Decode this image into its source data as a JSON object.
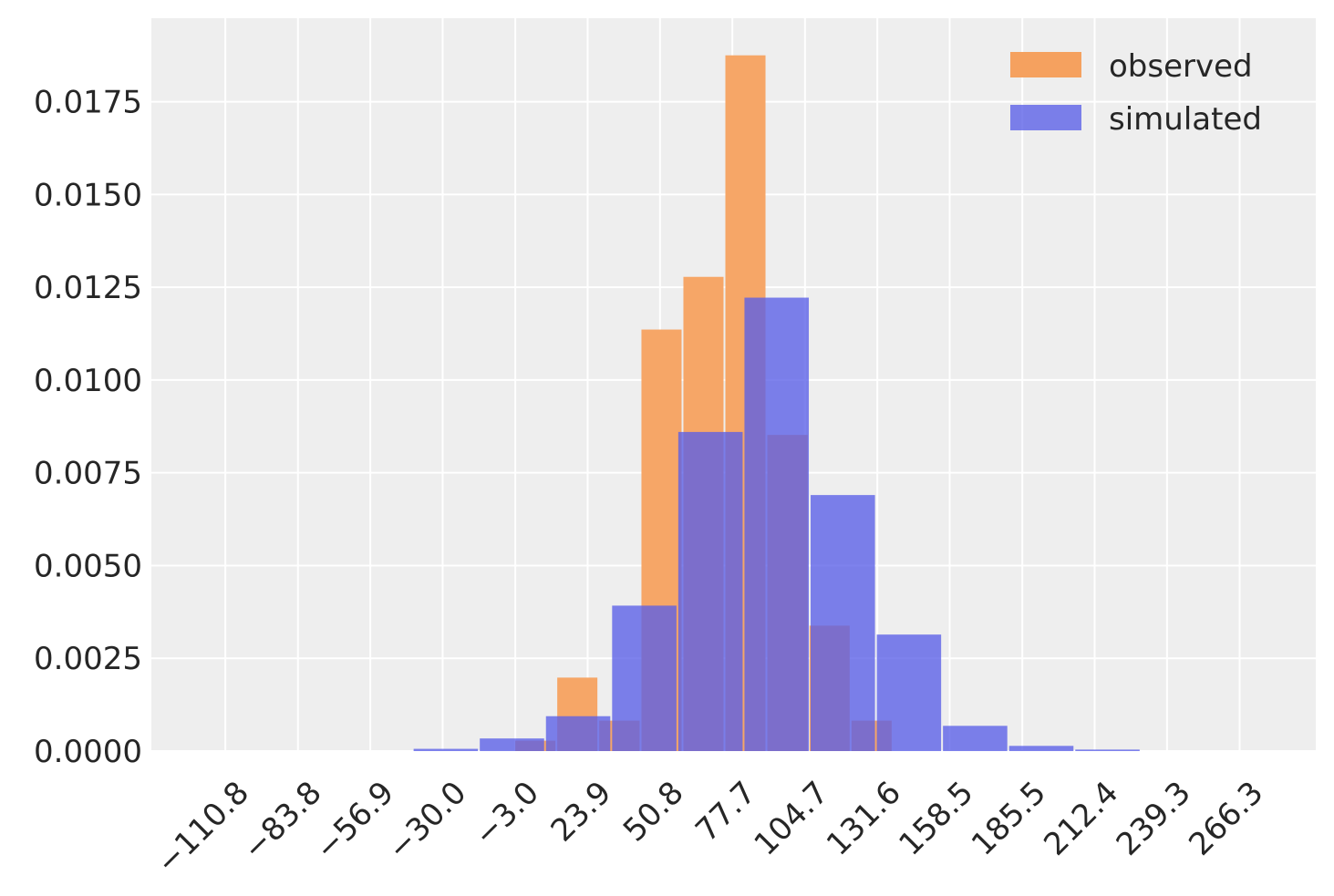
{
  "chart_data": {
    "type": "bar",
    "title": "",
    "xlabel": "",
    "ylabel": "",
    "xlim": [
      -138.3,
      294.6
    ],
    "ylim": [
      0,
      0.01975
    ],
    "grid": true,
    "legend_position": "top-right",
    "x_ticks": [
      -110.8,
      -83.8,
      -56.9,
      -30.0,
      -3.0,
      23.9,
      50.8,
      77.7,
      104.7,
      131.6,
      158.5,
      185.5,
      212.4,
      239.3,
      266.3
    ],
    "x_tick_labels": [
      "−110.8",
      "−83.8",
      "−56.9",
      "−30.0",
      "−3.0",
      "23.9",
      "50.8",
      "77.7",
      "104.7",
      "131.6",
      "158.5",
      "185.5",
      "212.4",
      "239.3",
      "266.3"
    ],
    "y_ticks": [
      0.0,
      0.0025,
      0.005,
      0.0075,
      0.01,
      0.0125,
      0.015,
      0.0175
    ],
    "y_tick_labels": [
      "0.0000",
      "0.0025",
      "0.0050",
      "0.0075",
      "0.0100",
      "0.0125",
      "0.0150",
      "0.0175"
    ],
    "series": [
      {
        "name": "observed",
        "color": "#f5a15f",
        "opacity": 0.95,
        "bars": [
          {
            "x0": -3.0,
            "x1": 12.6,
            "value": 0.00028
          },
          {
            "x0": 12.6,
            "x1": 28.2,
            "value": 0.00198
          },
          {
            "x0": 28.2,
            "x1": 43.9,
            "value": 0.00082
          },
          {
            "x0": 43.9,
            "x1": 59.5,
            "value": 0.01136
          },
          {
            "x0": 59.5,
            "x1": 75.1,
            "value": 0.01278
          },
          {
            "x0": 75.1,
            "x1": 90.7,
            "value": 0.01875
          },
          {
            "x0": 90.7,
            "x1": 106.4,
            "value": 0.00852
          },
          {
            "x0": 106.4,
            "x1": 122.0,
            "value": 0.00338
          },
          {
            "x0": 122.0,
            "x1": 137.6,
            "value": 0.00082
          }
        ]
      },
      {
        "name": "simulated",
        "color": "#5a5fe8",
        "opacity": 0.78,
        "bars": [
          {
            "x0": -40.8,
            "x1": -16.2,
            "value": 6e-05
          },
          {
            "x0": -16.2,
            "x1": 8.4,
            "value": 0.00034
          },
          {
            "x0": 8.4,
            "x1": 33.0,
            "value": 0.00094
          },
          {
            "x0": 33.0,
            "x1": 57.6,
            "value": 0.00392
          },
          {
            "x0": 57.6,
            "x1": 82.2,
            "value": 0.0086
          },
          {
            "x0": 82.2,
            "x1": 106.8,
            "value": 0.01222
          },
          {
            "x0": 106.8,
            "x1": 131.4,
            "value": 0.0069
          },
          {
            "x0": 131.4,
            "x1": 156.0,
            "value": 0.00314
          },
          {
            "x0": 156.0,
            "x1": 180.6,
            "value": 0.00068
          },
          {
            "x0": 180.6,
            "x1": 205.2,
            "value": 0.00014
          },
          {
            "x0": 205.2,
            "x1": 229.8,
            "value": 4e-05
          }
        ]
      }
    ]
  }
}
